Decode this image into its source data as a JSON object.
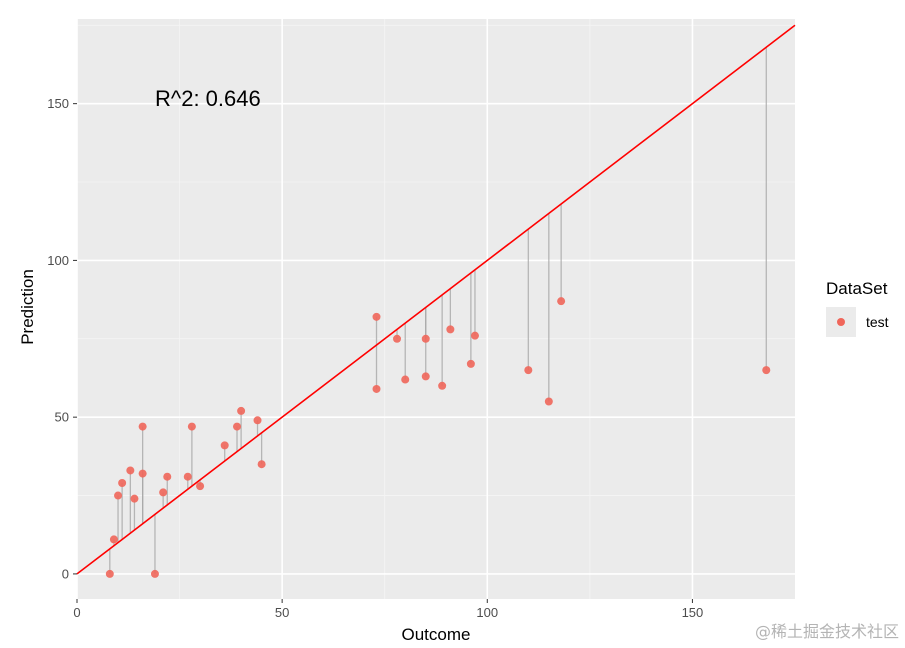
{
  "chart_data": {
    "type": "scatter",
    "title": "",
    "xlabel": "Outcome",
    "ylabel": "Prediction",
    "xlim": [
      0,
      175
    ],
    "ylim": [
      -8,
      177
    ],
    "x_ticks": [
      0,
      50,
      100,
      150
    ],
    "y_ticks": [
      0,
      50,
      100,
      150
    ],
    "x_tick_labels": [
      "0",
      "50",
      "100",
      "150"
    ],
    "y_tick_labels": [
      "0",
      "50",
      "100",
      "150"
    ],
    "grid": true,
    "legend": {
      "title": "DataSet",
      "position": "right",
      "entries": [
        "test"
      ]
    },
    "annotation": "R^2: 0.646",
    "reference_line": {
      "slope": 1,
      "intercept": 0,
      "color": "#ff0000"
    },
    "series": [
      {
        "name": "test",
        "color": "#f0665a",
        "points": [
          {
            "x": 8,
            "y": 0
          },
          {
            "x": 9,
            "y": 11
          },
          {
            "x": 10,
            "y": 25
          },
          {
            "x": 11,
            "y": 29
          },
          {
            "x": 13,
            "y": 33
          },
          {
            "x": 14,
            "y": 24
          },
          {
            "x": 16,
            "y": 47
          },
          {
            "x": 16,
            "y": 32
          },
          {
            "x": 19,
            "y": 0
          },
          {
            "x": 21,
            "y": 26
          },
          {
            "x": 22,
            "y": 31
          },
          {
            "x": 27,
            "y": 31
          },
          {
            "x": 28,
            "y": 47
          },
          {
            "x": 30,
            "y": 28
          },
          {
            "x": 36,
            "y": 41
          },
          {
            "x": 39,
            "y": 47
          },
          {
            "x": 40,
            "y": 52
          },
          {
            "x": 44,
            "y": 49
          },
          {
            "x": 45,
            "y": 35
          },
          {
            "x": 73,
            "y": 82
          },
          {
            "x": 73,
            "y": 59
          },
          {
            "x": 78,
            "y": 75
          },
          {
            "x": 80,
            "y": 62
          },
          {
            "x": 85,
            "y": 75
          },
          {
            "x": 85,
            "y": 63
          },
          {
            "x": 89,
            "y": 60
          },
          {
            "x": 91,
            "y": 78
          },
          {
            "x": 96,
            "y": 67
          },
          {
            "x": 97,
            "y": 76
          },
          {
            "x": 110,
            "y": 65
          },
          {
            "x": 115,
            "y": 55
          },
          {
            "x": 118,
            "y": 87
          },
          {
            "x": 168,
            "y": 65
          }
        ]
      }
    ]
  },
  "watermark": "@稀土掘金技术社区"
}
